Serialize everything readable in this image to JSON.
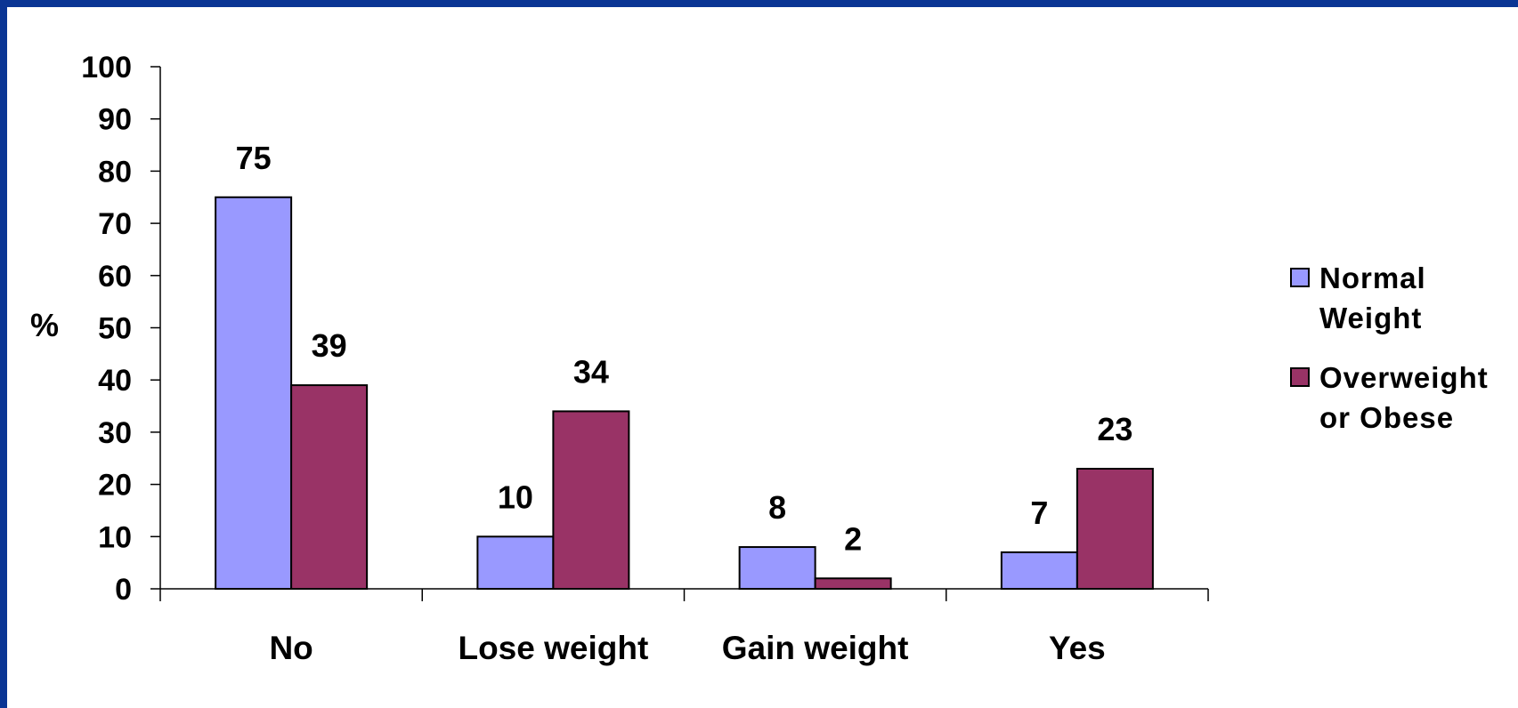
{
  "chart_data": {
    "type": "bar",
    "title": "",
    "xlabel": "",
    "ylabel": "%",
    "ylim": [
      0,
      100
    ],
    "yticks": [
      0,
      10,
      20,
      30,
      40,
      50,
      60,
      70,
      80,
      90,
      100
    ],
    "categories": [
      "No",
      "Lose weight",
      "Gain weight",
      "Yes"
    ],
    "series": [
      {
        "name": "Normal Weight",
        "color": "#9999ff",
        "values": [
          75,
          10,
          8,
          7
        ]
      },
      {
        "name": "Overweight or Obese",
        "color": "#993366",
        "values": [
          39,
          34,
          2,
          23
        ]
      }
    ],
    "legend": {
      "position": "right",
      "lines": [
        [
          "Normal",
          "Weight"
        ],
        [
          "Overweight",
          "or Obese"
        ]
      ]
    },
    "grid": false
  },
  "colors": {
    "border": "#0a3594",
    "background": "#ffffff",
    "axis": "#000000"
  }
}
